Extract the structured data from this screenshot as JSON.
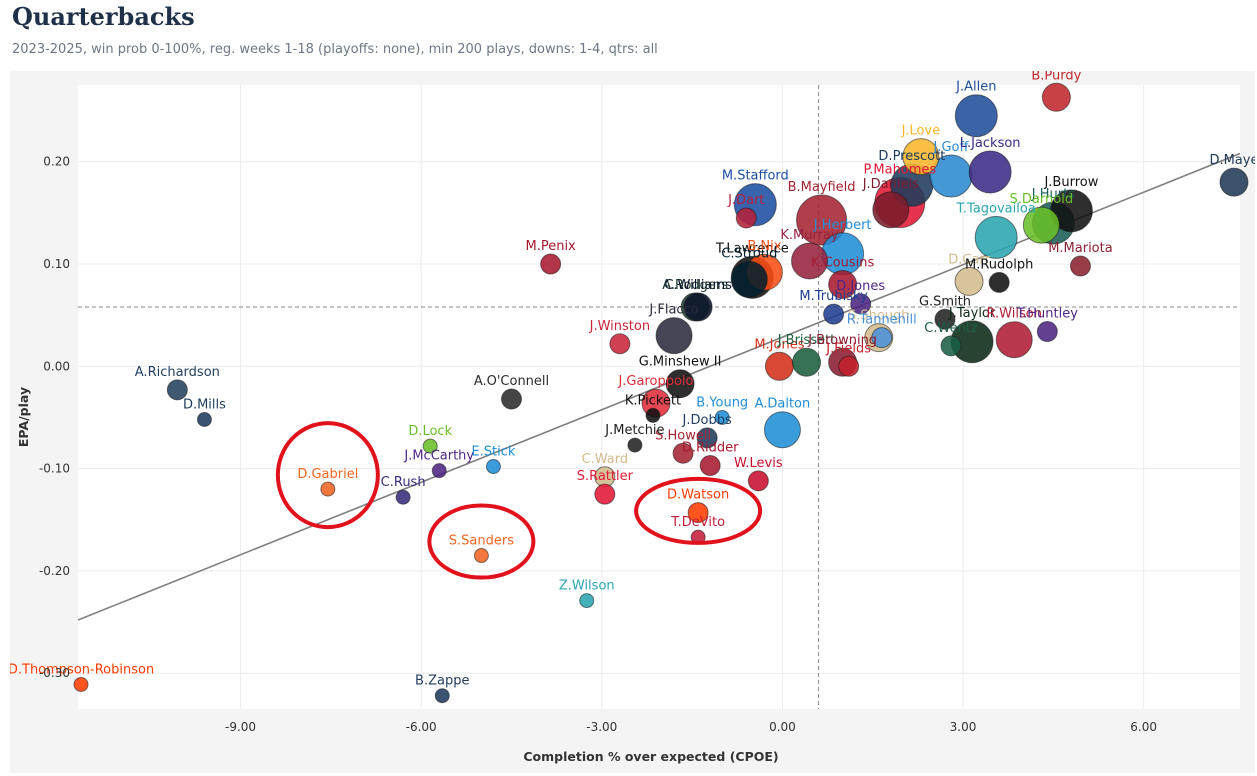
{
  "header": {
    "title": "Quarterbacks",
    "subtitle": "2023-2025, win prob 0-100%, reg. weeks 1-18 (playoffs: none), min 200 plays, downs: 1-4, qtrs: all"
  },
  "chart_data": {
    "type": "scatter",
    "xlabel": "Completion % over expected (CPOE)",
    "ylabel": "EPA/play",
    "xlim": [
      -11.7,
      7.6
    ],
    "ylim": [
      -0.335,
      0.275
    ],
    "xticks": [
      -9,
      -6,
      -3,
      0,
      3,
      6
    ],
    "xtick_labels": [
      "-9.00",
      "-6.00",
      "-3.00",
      "0.00",
      "3.00",
      "6.00"
    ],
    "yticks": [
      -0.3,
      -0.2,
      -0.1,
      0.0,
      0.1,
      0.2
    ],
    "ytick_labels": [
      "-0.30",
      "-0.20",
      "-0.10",
      "0.00",
      "0.10",
      "0.20"
    ],
    "grid": true,
    "reference_lines": {
      "x_mean": 0.6,
      "y_mean": 0.058
    },
    "trendline": {
      "x": [
        -11.7,
        7.6
      ],
      "y": [
        -0.248,
        0.208
      ]
    },
    "highlighted_players": [
      "D.Gabriel",
      "S.Sanders",
      "D.Watson",
      "T.DeVito"
    ],
    "points": [
      {
        "name": "B.Purdy",
        "x": 4.55,
        "y": 0.263,
        "size": 3,
        "color": "#c0272d"
      },
      {
        "name": "J.Allen",
        "x": 3.22,
        "y": 0.245,
        "size": 5,
        "color": "#1f4e9a"
      },
      {
        "name": "D.Maye",
        "x": 7.5,
        "y": 0.18,
        "size": 3,
        "color": "#1f3a55"
      },
      {
        "name": "J.Love",
        "x": 2.3,
        "y": 0.205,
        "size": 4,
        "color": "#fbb62c"
      },
      {
        "name": "D.Prescott",
        "x": 2.15,
        "y": 0.177,
        "size": 5,
        "color": "#203b5c"
      },
      {
        "name": "J.Goff",
        "x": 2.8,
        "y": 0.186,
        "size": 5,
        "color": "#2a8ad0"
      },
      {
        "name": "L.Jackson",
        "x": 3.45,
        "y": 0.19,
        "size": 5,
        "color": "#3c2a86"
      },
      {
        "name": "J.Hurts",
        "x": 4.5,
        "y": 0.14,
        "size": 5,
        "color": "#1a5e57"
      },
      {
        "name": "S.Darnold",
        "x": 4.3,
        "y": 0.138,
        "size": 4,
        "color": "#69be28"
      },
      {
        "name": "J.Burrow",
        "x": 4.8,
        "y": 0.152,
        "size": 5,
        "color": "#111111"
      },
      {
        "name": "T.Tagovailoa",
        "x": 3.55,
        "y": 0.126,
        "size": 5,
        "color": "#2aa5b0"
      },
      {
        "name": "J.Daniels",
        "x": 1.8,
        "y": 0.153,
        "size": 4,
        "color": "#7b1d2e"
      },
      {
        "name": "P.Mahomes",
        "x": 1.95,
        "y": 0.16,
        "size": 6,
        "color": "#e31837"
      },
      {
        "name": "J.Dart",
        "x": -0.6,
        "y": 0.145,
        "size": 2,
        "color": "#b5223b"
      },
      {
        "name": "M.Stafford",
        "x": -0.45,
        "y": 0.158,
        "size": 5,
        "color": "#1b4fa2"
      },
      {
        "name": "B.Mayfield",
        "x": 0.65,
        "y": 0.143,
        "size": 6,
        "color": "#a52332"
      },
      {
        "name": "J.Herbert",
        "x": 1.0,
        "y": 0.11,
        "size": 5,
        "color": "#1f8ed6"
      },
      {
        "name": "B.Nix",
        "x": -0.3,
        "y": 0.092,
        "size": 4,
        "color": "#fb4f14"
      },
      {
        "name": "T.Lawrence",
        "x": -0.5,
        "y": 0.087,
        "size": 5,
        "color": "#111111"
      },
      {
        "name": "K.Murray",
        "x": 0.45,
        "y": 0.103,
        "size": 4,
        "color": "#97233f"
      },
      {
        "name": "C.Stroud",
        "x": -0.55,
        "y": 0.085,
        "size": 4,
        "color": "#03202f"
      },
      {
        "name": "K.Cousins",
        "x": 1.0,
        "y": 0.08,
        "size": 3,
        "color": "#a71930"
      },
      {
        "name": "D.Carr",
        "x": 3.1,
        "y": 0.083,
        "size": 3,
        "color": "#d3bc8d"
      },
      {
        "name": "M.Rudolph",
        "x": 3.6,
        "y": 0.082,
        "size": 2,
        "color": "#111111"
      },
      {
        "name": "M.Mariota",
        "x": 4.95,
        "y": 0.098,
        "size": 2,
        "color": "#8b2131"
      },
      {
        "name": "M.Penix",
        "x": -3.85,
        "y": 0.1,
        "size": 2,
        "color": "#a71930"
      },
      {
        "name": "A.Rodgers",
        "x": -1.45,
        "y": 0.058,
        "size": 3,
        "color": "#1c3a2f"
      },
      {
        "name": "C.Williams",
        "x": -1.4,
        "y": 0.058,
        "size": 3,
        "color": "#0b162a"
      },
      {
        "name": "D.Jones",
        "x": 1.3,
        "y": 0.061,
        "size": 2,
        "color": "#4f2683"
      },
      {
        "name": "M.Trubisky",
        "x": 0.85,
        "y": 0.051,
        "size": 2,
        "color": "#203f8f"
      },
      {
        "name": "G.Smith",
        "x": 2.7,
        "y": 0.046,
        "size": 2,
        "color": "#222222"
      },
      {
        "name": "T.Huntley",
        "x": 4.4,
        "y": 0.034,
        "size": 2,
        "color": "#4f2683"
      },
      {
        "name": "R.Wilson",
        "x": 3.85,
        "y": 0.026,
        "size": 4,
        "color": "#b01c35"
      },
      {
        "name": "J.Taylor",
        "x": 3.15,
        "y": 0.024,
        "size": 5,
        "color": "#0b2916"
      },
      {
        "name": "C.Wentz",
        "x": 2.8,
        "y": 0.02,
        "size": 2,
        "color": "#1a5e45"
      },
      {
        "name": "J.Winston",
        "x": -2.7,
        "y": 0.022,
        "size": 2,
        "color": "#c8253a"
      },
      {
        "name": "J.Flacco",
        "x": -1.8,
        "y": 0.03,
        "size": 4,
        "color": "#2b2b3f"
      },
      {
        "name": "M.Jones",
        "x": -0.05,
        "y": 0.0,
        "size": 3,
        "color": "#d52f1a"
      },
      {
        "name": "J.Brissett",
        "x": 0.4,
        "y": 0.004,
        "size": 3,
        "color": "#1b5e3e"
      },
      {
        "name": "J.Fields",
        "x": 1.1,
        "y": 0.0,
        "size": 2,
        "color": "#c11f2b"
      },
      {
        "name": "S.Shough",
        "x": 1.6,
        "y": 0.028,
        "size": 3,
        "color": "#d3bc8d"
      },
      {
        "name": "R.Tannehill",
        "x": 1.65,
        "y": 0.028,
        "size": 2,
        "color": "#4b92db"
      },
      {
        "name": "J.Browning",
        "x": 1.0,
        "y": 0.004,
        "size": 3,
        "color": "#8a1c2f"
      },
      {
        "name": "A.Richardson",
        "x": -10.05,
        "y": -0.023,
        "size": 2,
        "color": "#23415f"
      },
      {
        "name": "D.Mills",
        "x": -9.6,
        "y": -0.052,
        "size": 1,
        "color": "#1f3b5c"
      },
      {
        "name": "A.O'Connell",
        "x": -4.5,
        "y": -0.032,
        "size": 2,
        "color": "#2b2b2b"
      },
      {
        "name": "G.Minshew II",
        "x": -1.7,
        "y": -0.017,
        "size": 3,
        "color": "#111111"
      },
      {
        "name": "J.Garoppolo",
        "x": -2.1,
        "y": -0.036,
        "size": 3,
        "color": "#e02c3a"
      },
      {
        "name": "K.Pickett",
        "x": -2.15,
        "y": -0.048,
        "size": 1,
        "color": "#111111"
      },
      {
        "name": "J.Dobbs",
        "x": -1.25,
        "y": -0.07,
        "size": 2,
        "color": "#1f3b5c"
      },
      {
        "name": "B.Young",
        "x": -1.0,
        "y": -0.05,
        "size": 1,
        "color": "#1f8ed6"
      },
      {
        "name": "A.Dalton",
        "x": 0.0,
        "y": -0.062,
        "size": 4,
        "color": "#1f8ed6"
      },
      {
        "name": "S.Howell",
        "x": -1.65,
        "y": -0.085,
        "size": 2,
        "color": "#a52332"
      },
      {
        "name": "D.Ridder",
        "x": -1.2,
        "y": -0.097,
        "size": 2,
        "color": "#a71930"
      },
      {
        "name": "W.Levis",
        "x": -0.4,
        "y": -0.112,
        "size": 2,
        "color": "#c8102e"
      },
      {
        "name": "C.Ward",
        "x": -2.95,
        "y": -0.108,
        "size": 2,
        "color": "#d3bc8d"
      },
      {
        "name": "S.Rattler",
        "x": -2.95,
        "y": -0.125,
        "size": 2,
        "color": "#e31837"
      },
      {
        "name": "D.Watson",
        "x": -1.4,
        "y": -0.143,
        "size": 2,
        "color": "#ff3c00"
      },
      {
        "name": "T.DeVito",
        "x": -1.4,
        "y": -0.167,
        "size": 1,
        "color": "#c41e3a"
      },
      {
        "name": "J.Metchie",
        "x": -2.45,
        "y": -0.077,
        "size": 1,
        "color": "#222222"
      },
      {
        "name": "D.Lock",
        "x": -5.85,
        "y": -0.078,
        "size": 1,
        "color": "#69be28"
      },
      {
        "name": "J.McCarthy",
        "x": -5.7,
        "y": -0.102,
        "size": 1,
        "color": "#4f2683"
      },
      {
        "name": "E.Stick",
        "x": -4.8,
        "y": -0.098,
        "size": 1,
        "color": "#1f8ed6"
      },
      {
        "name": "C.Rush",
        "x": -6.3,
        "y": -0.128,
        "size": 1,
        "color": "#372b7a"
      },
      {
        "name": "D.Gabriel",
        "x": -7.55,
        "y": -0.12,
        "size": 1,
        "color": "#f26522"
      },
      {
        "name": "S.Sanders",
        "x": -5.0,
        "y": -0.185,
        "size": 1,
        "color": "#f26522"
      },
      {
        "name": "Z.Wilson",
        "x": -3.25,
        "y": -0.229,
        "size": 1,
        "color": "#2aa5b0"
      },
      {
        "name": "B.Zappe",
        "x": -5.65,
        "y": -0.322,
        "size": 1,
        "color": "#1f3b5c"
      },
      {
        "name": "D.Thompson-Robinson",
        "x": -11.65,
        "y": -0.311,
        "size": 1,
        "color": "#ff3c00"
      }
    ]
  }
}
